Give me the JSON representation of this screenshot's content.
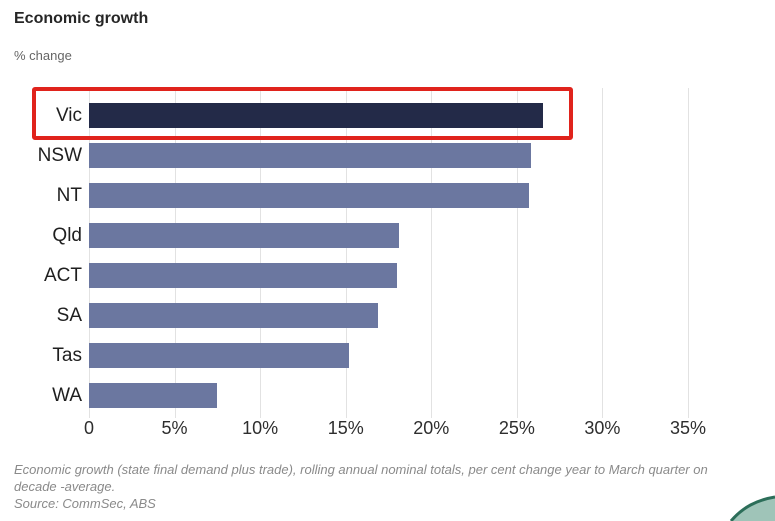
{
  "header": {
    "title": "Economic growth",
    "subtitle": "% change"
  },
  "chart_data": {
    "type": "bar",
    "orientation": "horizontal",
    "title": "Economic growth",
    "subtitle": "% change",
    "categories": [
      "Vic",
      "NSW",
      "NT",
      "Qld",
      "ACT",
      "SA",
      "Tas",
      "WA"
    ],
    "values": [
      26.5,
      25.8,
      25.7,
      18.1,
      18.0,
      16.9,
      15.2,
      7.5
    ],
    "x_tick_labels": [
      "0",
      "5%",
      "10%",
      "15%",
      "20%",
      "25%",
      "30%",
      "35%"
    ],
    "x_tick_values": [
      0,
      5,
      10,
      15,
      20,
      25,
      30,
      35
    ],
    "xlim": [
      0,
      35
    ],
    "grid": "vertical",
    "legend": "none",
    "highlight": {
      "category": "Vic",
      "style": "red-outline-box"
    },
    "colors": {
      "bar": "#6b77a0",
      "highlight_bar": "#232a48",
      "outline": "#e0231c",
      "gridline": "#e2e2e2"
    }
  },
  "footnote": {
    "text": "Economic growth (state final demand plus trade), rolling annual nominal totals, per cent change year to March quarter on decade -average.",
    "source": "Source: CommSec, ABS"
  },
  "branding": {
    "corner_logo": "commsec-logo-swoosh",
    "corner_logo_color": "#2c6e59"
  }
}
